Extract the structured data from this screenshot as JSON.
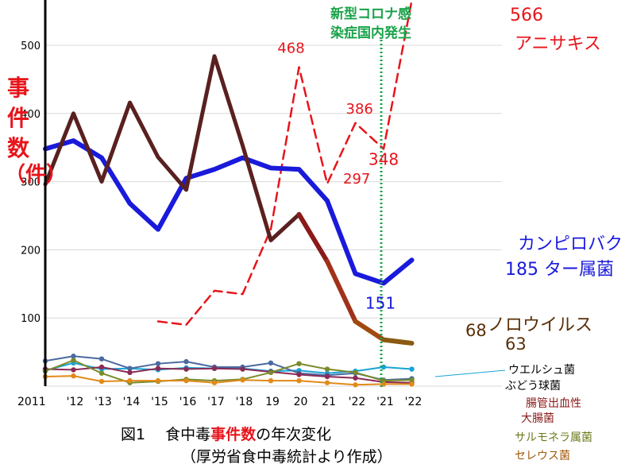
{
  "ylabel": [
    "事",
    "件",
    "数",
    "（件）"
  ],
  "caption": {
    "prefix": "図1　 食中毒",
    "highlight": "事件数",
    "suffix": "の年次変化",
    "source": "（厚労省食中毒統計より作成）"
  },
  "covid_note": [
    "新型コロナ感",
    "染症国内発生"
  ],
  "chart_data": {
    "type": "line",
    "y_ticks": [
      "100",
      "200",
      "300",
      "400",
      "500"
    ],
    "ylim": [
      0,
      550
    ],
    "x_ticks": [
      "2011",
      "'12",
      "'13",
      "'14",
      "'15",
      "'16",
      "'17",
      "'18",
      "19",
      "20",
      "21",
      "'22",
      "'21",
      "'22"
    ],
    "grid": true,
    "series": [
      {
        "name": "アニサキス",
        "name_lines": [
          "566",
          "アニサキス"
        ],
        "color": "#e8141b",
        "dashed": true,
        "x": [
          4,
          5,
          6,
          7,
          8,
          9,
          10,
          11,
          12,
          13
        ],
        "y": [
          95,
          90,
          140,
          135,
          230,
          468,
          297,
          386,
          348,
          566
        ],
        "labels": {
          "9": "468",
          "10": "297",
          "11": "386",
          "12": "348"
        }
      },
      {
        "name": "カンピロバクター属菌",
        "name_lines": [
          "カンピロバク",
          "185 ター属菌"
        ],
        "color": "#1a1adb",
        "x": [
          0,
          1,
          2,
          3,
          4,
          5,
          6,
          7,
          8,
          9,
          10,
          11,
          12,
          13
        ],
        "y": [
          348,
          360,
          335,
          268,
          230,
          305,
          318,
          335,
          320,
          318,
          272,
          165,
          151,
          185
        ],
        "labels": {
          "12": "151"
        }
      },
      {
        "name": "ノロウイルス",
        "name_lines": [
          "ノロウイルス",
          "68",
          "63"
        ],
        "color": "#5a2020",
        "x": [
          0,
          1,
          2,
          3,
          4,
          5,
          6,
          7,
          8,
          9,
          10,
          11,
          12,
          13
        ],
        "y": [
          296,
          400,
          300,
          416,
          336,
          288,
          484,
          353,
          214,
          252,
          183,
          95,
          68,
          63
        ]
      },
      {
        "name": "ウエルシュ菌",
        "color": "#19a3d6",
        "x": [
          0,
          1,
          2,
          3,
          4,
          5,
          6,
          7,
          8,
          9,
          10,
          11,
          12,
          13
        ],
        "y": [
          23,
          34,
          25,
          26,
          24,
          27,
          26,
          26,
          22,
          23,
          19,
          22,
          28,
          25
        ]
      },
      {
        "name": "ぶどう球菌",
        "color": "#4a6aa0",
        "x": [
          0,
          1,
          2,
          3,
          4,
          5,
          6,
          7,
          8,
          9,
          10,
          11,
          12,
          13
        ],
        "y": [
          37,
          44,
          40,
          26,
          33,
          36,
          28,
          28,
          34,
          19,
          16,
          19,
          9,
          11
        ]
      },
      {
        "name": "腸管出血性大腸菌",
        "color": "#8b2a55",
        "x": [
          0,
          1,
          2,
          3,
          4,
          5,
          6,
          7,
          8,
          9,
          10,
          11,
          12,
          13
        ],
        "y": [
          25,
          24,
          28,
          20,
          26,
          25,
          26,
          25,
          21,
          17,
          14,
          12,
          6,
          5
        ]
      },
      {
        "name": "サルモネラ属菌",
        "color": "#7a8a2a",
        "x": [
          0,
          1,
          2,
          3,
          4,
          5,
          6,
          7,
          8,
          9,
          10,
          11,
          12,
          13
        ],
        "y": [
          22,
          38,
          19,
          5,
          7,
          10,
          8,
          10,
          20,
          33,
          25,
          20,
          8,
          9
        ]
      },
      {
        "name": "セレウス菌",
        "color": "#e08a1a",
        "x": [
          0,
          1,
          2,
          3,
          4,
          5,
          6,
          7,
          8,
          9,
          10,
          11,
          12,
          13
        ],
        "y": [
          14,
          15,
          7,
          8,
          8,
          8,
          5,
          9,
          8,
          8,
          5,
          2,
          3,
          3
        ]
      }
    ]
  }
}
